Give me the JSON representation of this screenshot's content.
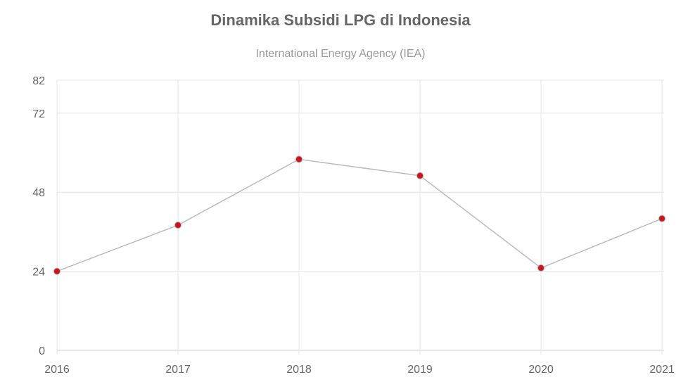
{
  "chart_data": {
    "type": "line",
    "title": "Dinamika Subsidi LPG di Indonesia",
    "subtitle": "International Energy Agency (IEA)",
    "categories": [
      "2016",
      "2017",
      "2018",
      "2019",
      "2020",
      "2021"
    ],
    "values": [
      24,
      38,
      58,
      53,
      25,
      40
    ],
    "ylim": [
      0,
      82
    ],
    "yticks": [
      0,
      24,
      48,
      72,
      82
    ],
    "grid": true,
    "line_color": "#bbbbbb",
    "point_color": "#d0121b"
  }
}
